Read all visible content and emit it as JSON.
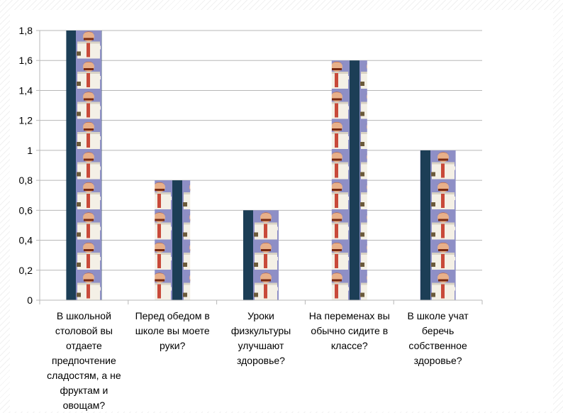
{
  "chart_data": {
    "type": "bar",
    "title": "",
    "xlabel": "",
    "ylabel": "",
    "categories": [
      "В школьной столовой вы отдаете предпочтение сладостям, а не фруктам и овощам?",
      "Перед обедом в школе вы моете руки?",
      "Уроки физкультуры улучшают здоровье?",
      "На переменах вы обычно сидите в классе?",
      "В школе учат беречь собственное здоровье?"
    ],
    "values": [
      1.8,
      0.8,
      0.6,
      1.6,
      1.0
    ],
    "ylim": [
      0,
      1.8
    ],
    "yticks": [
      "0",
      "0,2",
      "0,4",
      "0,6",
      "0,8",
      "1",
      "1,2",
      "1,4",
      "1,6",
      "1,8"
    ],
    "grid": true,
    "legend": "none",
    "bar_fill": "picture pattern (cartoon figure tiles)",
    "colors": {
      "grid": "#b7b7b7",
      "tile_bg": "#8e8fc6",
      "tile_edge": "#1c3e56"
    }
  }
}
